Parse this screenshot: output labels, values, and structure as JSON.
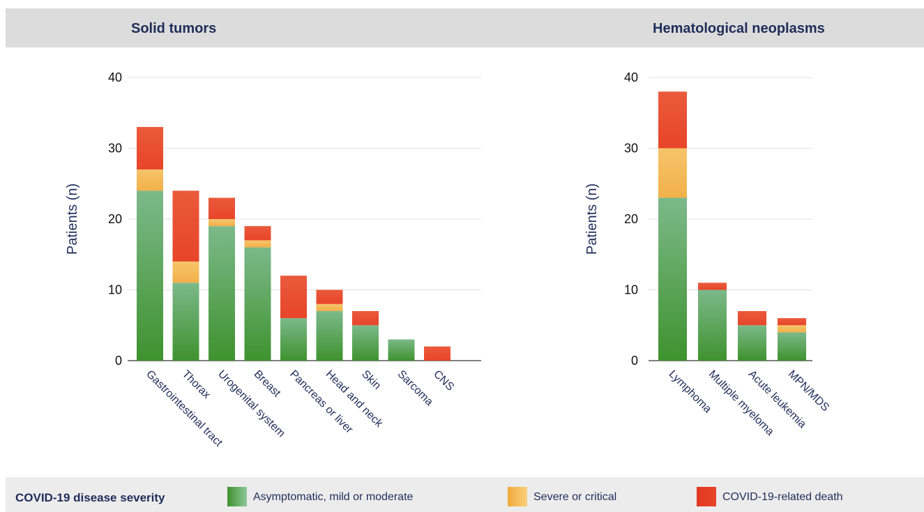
{
  "panels": {
    "solid_title": "Solid tumors",
    "heme_title": "Hematological neoplasms"
  },
  "legend": {
    "title": "COVID-19 disease severity",
    "items": [
      {
        "label": "Asymptomatic, mild or moderate",
        "color": "#4a9e4a"
      },
      {
        "label": "Severe or critical",
        "color": "#f5b34a"
      },
      {
        "label": "COVID-19-related death",
        "color": "#e8452a"
      }
    ]
  },
  "chart_data": [
    {
      "type": "bar",
      "stacked": true,
      "title": "Solid tumors",
      "ylabel": "Patients (n)",
      "ylim": [
        0,
        40
      ],
      "yticks": [
        0,
        10,
        20,
        30,
        40
      ],
      "grid": true,
      "categories": [
        "Gastrointestinal tract",
        "Thorax",
        "Urogenital system",
        "Breast",
        "Pancreas or liver",
        "Head and neck",
        "Skin",
        "Sarcoma",
        "CNS"
      ],
      "series": [
        {
          "name": "Asymptomatic, mild or moderate",
          "values": [
            24,
            11,
            19,
            16,
            6,
            7,
            5,
            3,
            0
          ]
        },
        {
          "name": "Severe or critical",
          "values": [
            3,
            3,
            1,
            1,
            0,
            1,
            0,
            0,
            0
          ]
        },
        {
          "name": "COVID-19-related death",
          "values": [
            6,
            10,
            3,
            2,
            6,
            2,
            2,
            0,
            2
          ]
        }
      ]
    },
    {
      "type": "bar",
      "stacked": true,
      "title": "Hematological neoplasms",
      "ylabel": "Patients (n)",
      "ylim": [
        0,
        40
      ],
      "yticks": [
        0,
        10,
        20,
        30,
        40
      ],
      "grid": true,
      "categories": [
        "Lymphoma",
        "Multiple myeloma",
        "Acute leukemia",
        "MPN/MDS"
      ],
      "series": [
        {
          "name": "Asymptomatic, mild or moderate",
          "values": [
            23,
            10,
            5,
            4
          ]
        },
        {
          "name": "Severe or critical",
          "values": [
            7,
            0,
            0,
            1
          ]
        },
        {
          "name": "COVID-19-related death",
          "values": [
            8,
            1,
            2,
            1
          ]
        }
      ]
    }
  ]
}
